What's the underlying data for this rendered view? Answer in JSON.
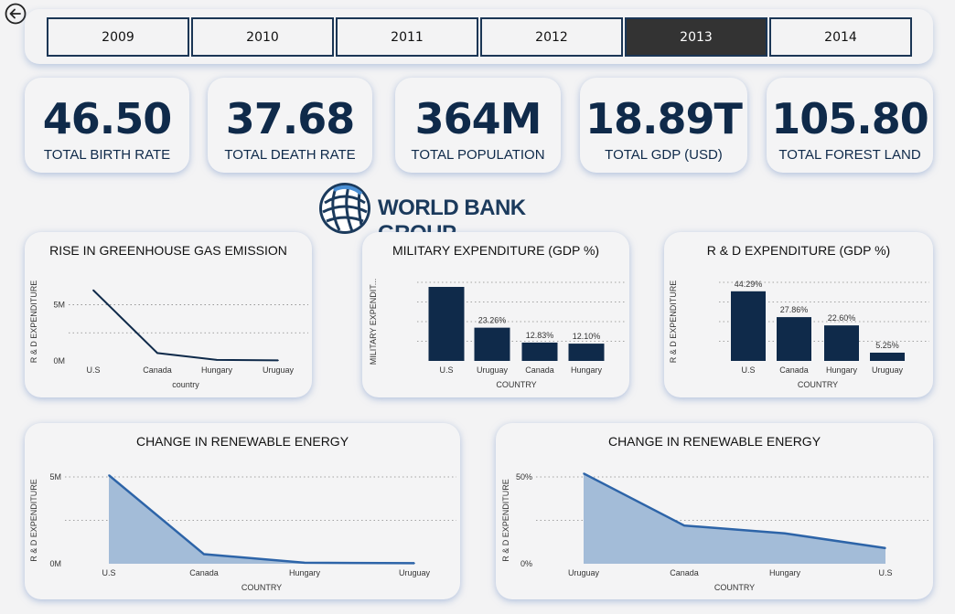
{
  "nav": {
    "back_icon": "back-arrow-icon"
  },
  "years": [
    {
      "label": "2009",
      "active": false
    },
    {
      "label": "2010",
      "active": false
    },
    {
      "label": "2011",
      "active": false
    },
    {
      "label": "2012",
      "active": false
    },
    {
      "label": "2013",
      "active": true
    },
    {
      "label": "2014",
      "active": false
    }
  ],
  "kpis": [
    {
      "value": "46.50",
      "label": "TOTAL BIRTH RATE"
    },
    {
      "value": "37.68",
      "label": "TOTAL DEATH RATE"
    },
    {
      "value": "364M",
      "label": "TOTAL POPULATION"
    },
    {
      "value": "18.89T",
      "label": "TOTAL GDP (USD)"
    },
    {
      "value": "105.80",
      "label": "TOTAL FOREST LAND"
    }
  ],
  "logo": {
    "text": "WORLD BANK GROUP",
    "icon": "globe-icon"
  },
  "colors": {
    "dark_navy": "#0f2a4a",
    "area_fill": "#a3bcd8",
    "area_line": "#2d64a8",
    "active_year": "#333333"
  },
  "chart_data": [
    {
      "type": "line",
      "title": "RISE IN GREENHOUSE GAS EMISSION",
      "xlabel": "country",
      "ylabel": "R & D EXPENDITURE",
      "categories": [
        "U.S",
        "Canada",
        "Hungary",
        "Uruguay"
      ],
      "values": [
        6300000,
        700000,
        90000,
        50000
      ],
      "yticks": [
        "0M",
        "5M"
      ],
      "ylim": [
        0,
        7000000
      ]
    },
    {
      "type": "bar",
      "title": "MILITARY EXPENDITURE (GDP %)",
      "xlabel": "COUNTRY",
      "ylabel": "MILITARY EXPENDIT...",
      "categories": [
        "U.S",
        "Uruguay",
        "Canada",
        "Hungary"
      ],
      "values": [
        51.8,
        23.26,
        12.83,
        12.1
      ],
      "data_labels": [
        "",
        "23.26%",
        "12.83%",
        "12.10%"
      ],
      "ylim": [
        0,
        55
      ]
    },
    {
      "type": "bar",
      "title": "R & D EXPENDITURE (GDP %)",
      "xlabel": "COUNTRY",
      "ylabel": "R & D EXPENDITURE",
      "categories": [
        "U.S",
        "Canada",
        "Hungary",
        "Uruguay"
      ],
      "values": [
        44.29,
        27.86,
        22.6,
        5.25
      ],
      "data_labels": [
        "44.29%",
        "27.86%",
        "22.60%",
        "5.25%"
      ],
      "ylim": [
        0,
        50
      ]
    },
    {
      "type": "area",
      "title": "CHANGE IN RENEWABLE ENERGY",
      "xlabel": "COUNTRY",
      "ylabel": "R & D EXPENDITURE",
      "categories": [
        "U.S",
        "Canada",
        "Hungary",
        "Uruguay"
      ],
      "values": [
        5100000,
        550000,
        60000,
        30000
      ],
      "yticks": [
        "0M",
        "5M"
      ],
      "ylim": [
        0,
        5000000
      ]
    },
    {
      "type": "area",
      "title": "CHANGE IN RENEWABLE ENERGY",
      "xlabel": "COUNTRY",
      "ylabel": "R & D EXPENDITURE",
      "categories": [
        "Uruguay",
        "Canada",
        "Hungary",
        "U.S"
      ],
      "values": [
        52,
        22,
        17.5,
        9
      ],
      "yticks": [
        "0%",
        "50%"
      ],
      "ylim": [
        0,
        50
      ]
    }
  ]
}
